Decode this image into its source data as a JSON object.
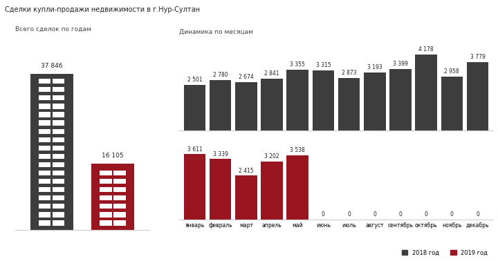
{
  "title": "Сделки купли-продажи недвижимости в г.Нур-Султан",
  "chart_data": [
    {
      "type": "bar",
      "title": "Всего сделок по годам",
      "categories": [
        null,
        null
      ],
      "values": [
        37846,
        16105
      ],
      "value_labels": [
        "37 846",
        "16 105"
      ],
      "colors": [
        "#3d3d3d",
        "#99151f"
      ],
      "ylim": [
        0,
        45000
      ],
      "data_labels": true,
      "tick_labels": false
    },
    {
      "type": "bar",
      "title": "Динамика по месяцам",
      "categories": [
        null,
        null,
        null,
        null,
        null,
        null,
        null,
        null,
        null,
        null,
        null,
        null
      ],
      "series": [
        {
          "name": "2018 год",
          "color": "#3d3d3d",
          "values": [
            2501,
            2780,
            2674,
            2841,
            3355,
            3315,
            2873,
            3193,
            3399,
            4178,
            2958,
            3779
          ],
          "value_labels": [
            "2 501",
            "2 780",
            "2 674",
            "2 841",
            "3 355",
            "3 315",
            "2 873",
            "3 193",
            "3 399",
            "4 178",
            "2 958",
            "3 779"
          ]
        }
      ],
      "ylim": [
        0,
        4600
      ],
      "data_labels": true,
      "tick_labels": false
    },
    {
      "type": "bar",
      "categories": [
        "январь",
        "февраль",
        "март",
        "апрель",
        "май",
        "июнь",
        "июль",
        "август",
        "сентябрь",
        "октябрь",
        "ноябрь",
        "декабрь"
      ],
      "series": [
        {
          "name": "2019 год",
          "color": "#99151f",
          "values": [
            3611,
            3339,
            2415,
            3202,
            3538,
            0,
            0,
            0,
            0,
            0,
            0,
            0
          ],
          "value_labels": [
            "3 611",
            "3 339",
            "2 415",
            "3 202",
            "3 538",
            "0",
            "0",
            "0",
            "0",
            "0",
            "0",
            "0"
          ]
        }
      ],
      "ylim": [
        0,
        4200
      ],
      "data_labels": true,
      "tick_labels": "x",
      "legend": "lower right"
    }
  ]
}
